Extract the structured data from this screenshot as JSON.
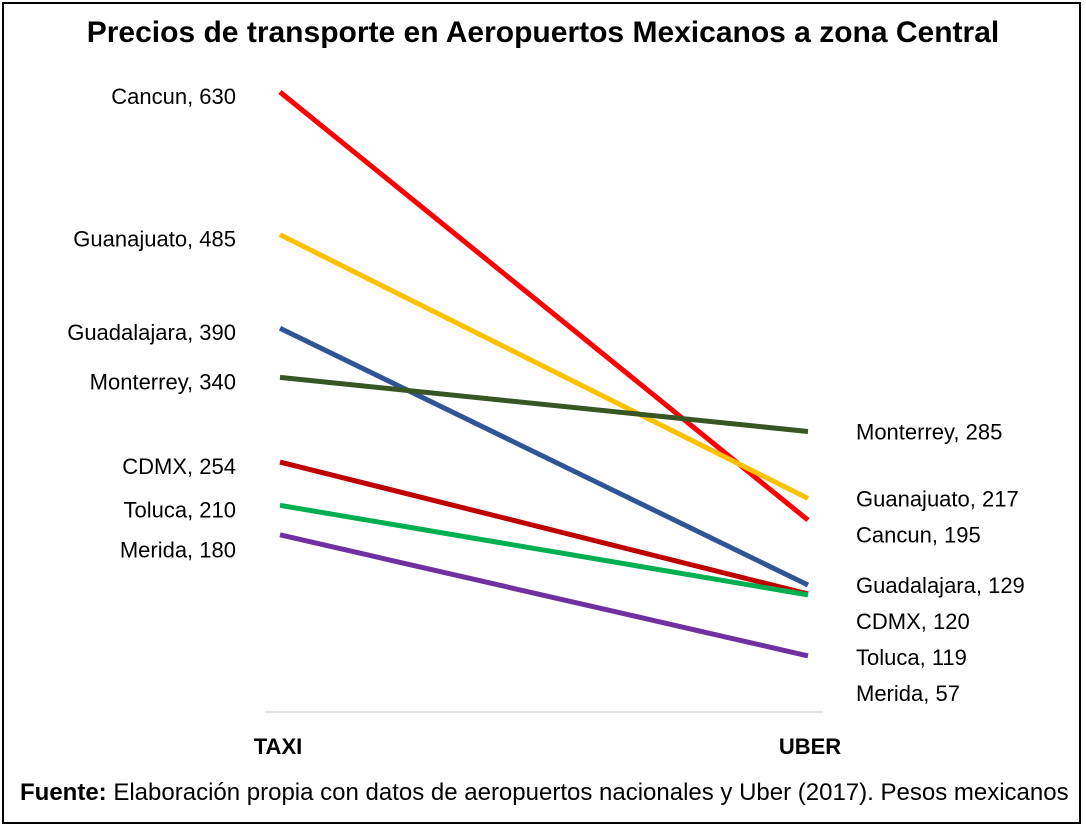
{
  "title": "Precios de transporte en Aeropuertos Mexicanos a zona Central",
  "source_label": "Fuente:",
  "source_text": " Elaboración propia con datos de aeropuertos nacionales y Uber (2017). Pesos mexicanos",
  "chart_data": {
    "type": "line",
    "title": "Precios de transporte en Aeropuertos Mexicanos a zona Central",
    "categories": [
      "TAXI",
      "UBER"
    ],
    "xlabel": "",
    "ylabel": "",
    "ylim": [
      0,
      680
    ],
    "grid": false,
    "legend": "none",
    "series": [
      {
        "name": "Cancun",
        "values": [
          630,
          195
        ],
        "color": "#ff0000",
        "labels": [
          "Cancun, 630",
          "Cancun, 195"
        ]
      },
      {
        "name": "Guanajuato",
        "values": [
          485,
          217
        ],
        "color": "#ffc000",
        "labels": [
          "Guanajuato, 485",
          "Guanajuato, 217"
        ]
      },
      {
        "name": "Guadalajara",
        "values": [
          390,
          129
        ],
        "color": "#2f5597",
        "labels": [
          "Guadalajara, 390",
          "Guadalajara, 129"
        ]
      },
      {
        "name": "Monterrey",
        "values": [
          340,
          285
        ],
        "color": "#375623",
        "labels": [
          "Monterrey, 340",
          "Monterrey, 285"
        ]
      },
      {
        "name": "CDMX",
        "values": [
          254,
          120
        ],
        "color": "#c00000",
        "labels": [
          "CDMX, 254",
          "CDMX, 120"
        ]
      },
      {
        "name": "Toluca",
        "values": [
          210,
          119
        ],
        "color": "#00b050",
        "labels": [
          "Toluca, 210",
          "Toluca, 119"
        ]
      },
      {
        "name": "Merida",
        "values": [
          180,
          57
        ],
        "color": "#7030a0",
        "labels": [
          "Merida, 180",
          "Merida, 57"
        ]
      }
    ]
  }
}
